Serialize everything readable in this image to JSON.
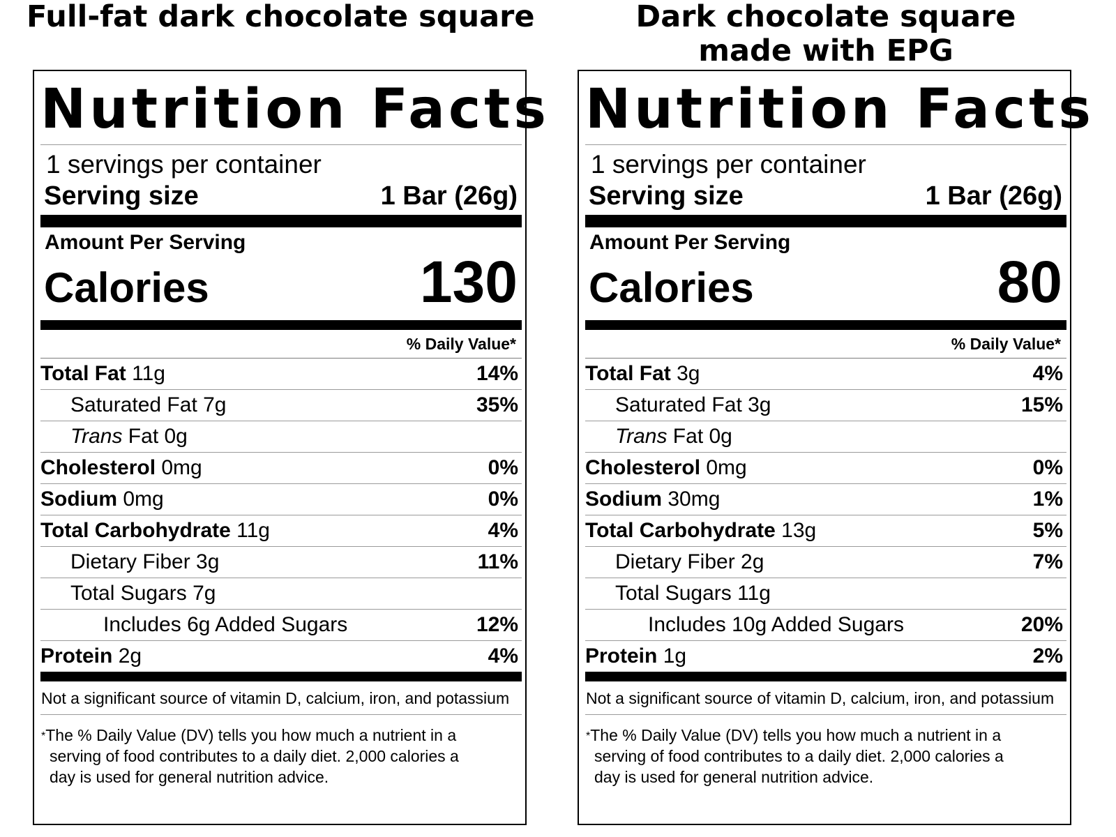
{
  "left": {
    "heading_lines": [
      "Full-fat dark chocolate square"
    ],
    "title": "Nutrition Facts",
    "servings_per_container": "1 servings per container",
    "serving_size_label": "Serving size",
    "serving_size_value": "1 Bar (26g)",
    "amount_per_serving": "Amount Per Serving",
    "calories_label": "Calories",
    "calories_value": "130",
    "dv_header": "% Daily Value*",
    "nutrients": [
      {
        "bold": "Total Fat",
        "amount": " 11g",
        "pct": "14%"
      },
      {
        "name": "Saturated Fat 7g",
        "pct": "35%"
      },
      {
        "italic": "Trans",
        "amount": " Fat 0g",
        "pct": ""
      },
      {
        "bold": "Cholesterol",
        "amount": " 0mg",
        "pct": "0%"
      },
      {
        "bold": "Sodium",
        "amount": " 0mg",
        "pct": "0%"
      },
      {
        "bold": "Total Carbohydrate",
        "amount": " 11g",
        "pct": "4%"
      },
      {
        "name": "Dietary Fiber 3g",
        "pct": "11%"
      },
      {
        "name": "Total Sugars 7g",
        "pct": ""
      },
      {
        "name": "Includes 6g Added Sugars",
        "pct": "12%"
      },
      {
        "bold": "Protein",
        "amount": " 2g",
        "pct": "4%"
      }
    ],
    "not_significant": "Not a significant source of vitamin D, calcium, iron, and potassium",
    "footnote_star": "*",
    "footnote_lines": [
      "The % Daily Value (DV) tells you how much a nutrient in a",
      "serving of food contributes to a daily diet. 2,000 calories a",
      "day is used for general nutrition advice."
    ]
  },
  "right": {
    "heading_lines": [
      "Dark chocolate square",
      "made with EPG"
    ],
    "title": "Nutrition Facts",
    "servings_per_container": "1 servings per container",
    "serving_size_label": "Serving size",
    "serving_size_value": "1 Bar (26g)",
    "amount_per_serving": "Amount Per Serving",
    "calories_label": "Calories",
    "calories_value": "80",
    "dv_header": "% Daily Value*",
    "nutrients": [
      {
        "bold": "Total Fat",
        "amount": " 3g",
        "pct": "4%"
      },
      {
        "name": "Saturated Fat 3g",
        "pct": "15%"
      },
      {
        "italic": "Trans",
        "amount": " Fat 0g",
        "pct": ""
      },
      {
        "bold": "Cholesterol",
        "amount": " 0mg",
        "pct": "0%"
      },
      {
        "bold": "Sodium",
        "amount": " 30mg",
        "pct": "1%"
      },
      {
        "bold": "Total Carbohydrate",
        "amount": " 13g",
        "pct": "5%"
      },
      {
        "name": "Dietary Fiber 2g",
        "pct": "7%"
      },
      {
        "name": "Total Sugars 11g",
        "pct": ""
      },
      {
        "name": "Includes 10g Added Sugars",
        "pct": "20%"
      },
      {
        "bold": "Protein",
        "amount": " 1g",
        "pct": "2%"
      }
    ],
    "not_significant": "Not a significant source of vitamin D, calcium, iron, and potassium",
    "footnote_star": "*",
    "footnote_lines": [
      "The % Daily Value (DV) tells you how much a nutrient in a",
      "serving of food contributes to a daily diet. 2,000 calories a",
      "day is used for general nutrition advice."
    ]
  }
}
